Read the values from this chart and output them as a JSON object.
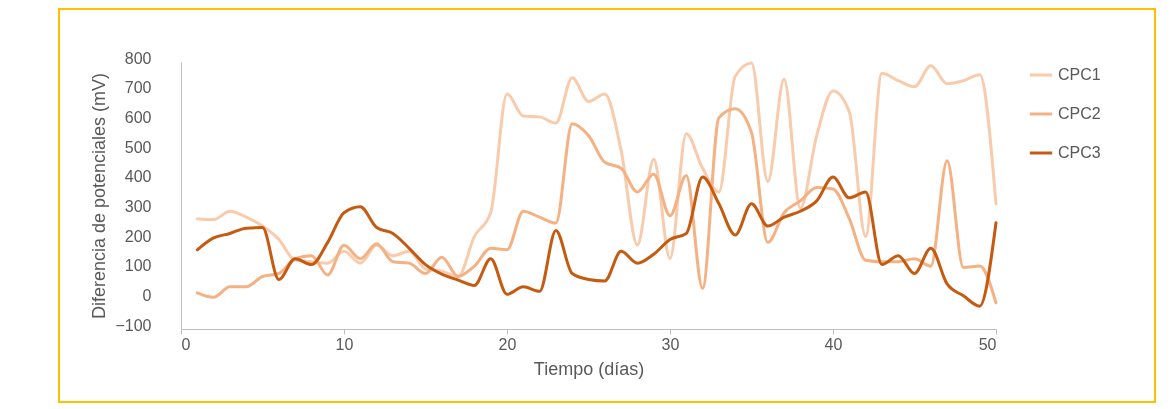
{
  "chart_data": {
    "type": "line",
    "xlabel": "Tiempo (días)",
    "ylabel": "Diferencia de potenciales (mV)",
    "x": [
      1,
      2,
      3,
      4,
      5,
      6,
      7,
      8,
      9,
      10,
      11,
      12,
      13,
      14,
      15,
      16,
      17,
      18,
      19,
      20,
      21,
      22,
      23,
      24,
      25,
      26,
      27,
      28,
      29,
      30,
      31,
      32,
      33,
      34,
      35,
      36,
      37,
      38,
      39,
      40,
      41,
      42,
      43,
      44,
      45,
      46,
      47,
      48,
      49,
      50
    ],
    "xlim": [
      0,
      50
    ],
    "xticks": [
      0,
      10,
      20,
      30,
      40,
      50
    ],
    "ylim": [
      -100,
      800
    ],
    "yticks": [
      -100,
      0,
      100,
      200,
      300,
      400,
      500,
      600,
      700,
      800
    ],
    "grid": false,
    "legend": "right",
    "line_style": "solid",
    "marker": "none",
    "series": [
      {
        "name": "CPC1",
        "color": "#f8cbad",
        "values": [
          272,
          269,
          297,
          277,
          247,
          202,
          132,
          127,
          122,
          162,
          122,
          182,
          147,
          162,
          102,
          95,
          77,
          212,
          292,
          692,
          618,
          615,
          594,
          747,
          667,
          692,
          502,
          183,
          472,
          138,
          558,
          442,
          362,
          752,
          797,
          397,
          742,
          307,
          552,
          702,
          632,
          212,
          762,
          737,
          717,
          787,
          727,
          737,
          757,
          322
        ]
      },
      {
        "name": "CPC2",
        "color": "#f4b183",
        "values": [
          22,
          7,
          42,
          42,
          77,
          87,
          137,
          147,
          82,
          182,
          137,
          187,
          127,
          122,
          87,
          142,
          77,
          112,
          172,
          167,
          297,
          277,
          257,
          592,
          552,
          462,
          442,
          362,
          422,
          282,
          417,
          37,
          612,
          642,
          562,
          192,
          292,
          332,
          377,
          372,
          272,
          132,
          127,
          127,
          137,
          112,
          467,
          107,
          112,
          -12
        ]
      },
      {
        "name": "CPC3",
        "color": "#c55a11",
        "values": [
          167,
          207,
          222,
          240,
          242,
          67,
          137,
          117,
          192,
          292,
          312,
          242,
          222,
          172,
          117,
          85,
          65,
          47,
          137,
          17,
          42,
          27,
          232,
          87,
          67,
          62,
          162,
          122,
          152,
          202,
          222,
          412,
          322,
          217,
          322,
          247,
          277,
          297,
          332,
          412,
          342,
          362,
          117,
          147,
          87,
          172,
          52,
          12,
          -23,
          258
        ]
      }
    ]
  }
}
